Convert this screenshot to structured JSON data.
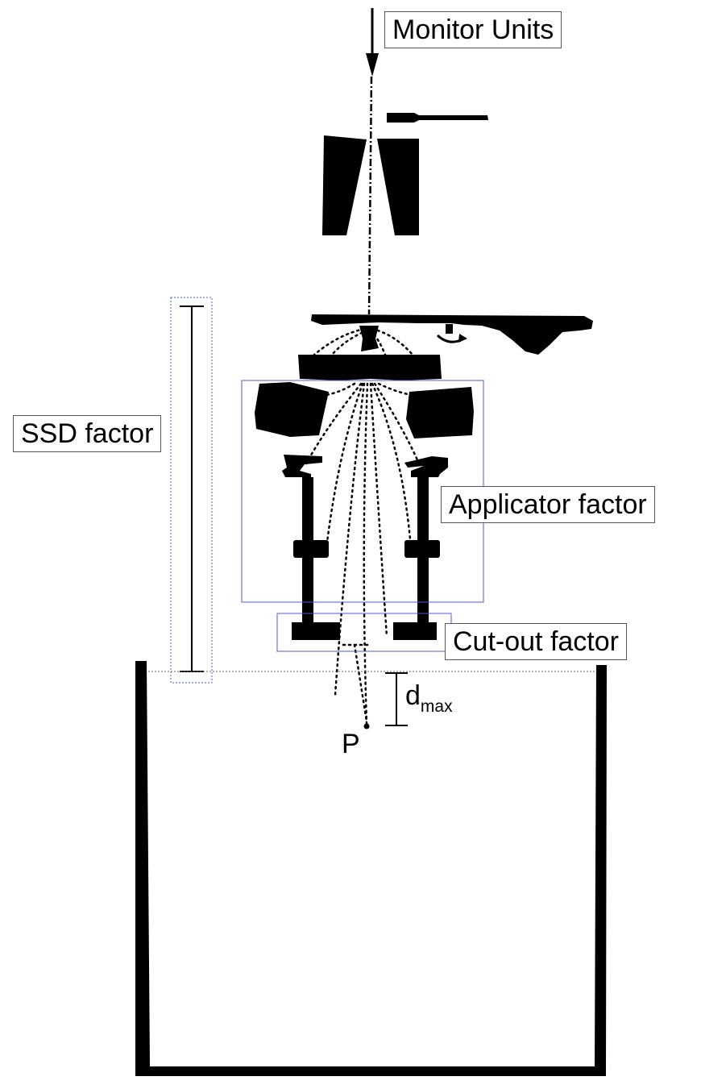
{
  "labels": {
    "monitor_units": "Monitor Units",
    "ssd_factor": "SSD factor",
    "applicator_factor": "Applicator factor",
    "cutout_factor": "Cut-out factor",
    "dmax_main": "d",
    "dmax_sub": "max",
    "point": "P"
  },
  "colors": {
    "ink": "#000000",
    "highlight_box": "#4a5bd6",
    "label_border": "#555555"
  }
}
